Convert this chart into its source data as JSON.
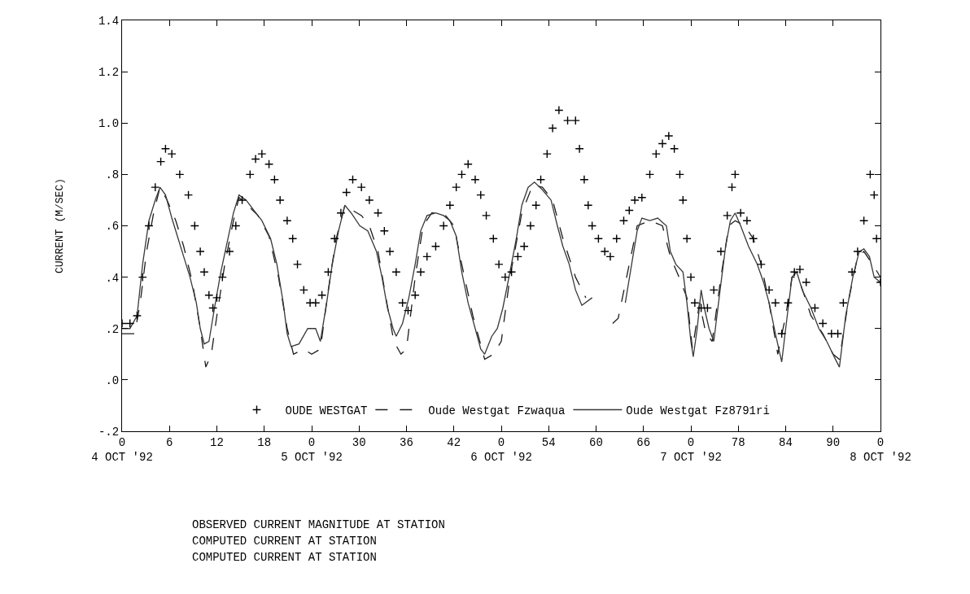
{
  "chart_data": {
    "type": "line",
    "ylabel": "CURRENT (M/SEC)",
    "xlim": [
      0,
      96
    ],
    "xticks": [
      {
        "value": 0,
        "label": "0\n4 OCT '92"
      },
      6,
      12,
      18,
      {
        "value": 24,
        "label": "0\n5 OCT '92"
      },
      30,
      36,
      42,
      {
        "value": 48,
        "label": "0\n6 OCT '92"
      },
      54,
      60,
      66,
      {
        "value": 72,
        "label": "0\n7 OCT '92"
      },
      78,
      84,
      90,
      {
        "value": 96,
        "label": "0\n8 OCT '92"
      }
    ],
    "ylim": [
      -0.2,
      1.4
    ],
    "yticks": [
      {
        "value": -0.2,
        "label": "-.2"
      },
      {
        "value": 0,
        "label": ".0"
      },
      {
        "value": 0.2,
        "label": ".2"
      },
      {
        "value": 0.4,
        "label": ".4"
      },
      {
        "value": 0.6,
        "label": ".6"
      },
      {
        "value": 0.8,
        "label": ".8"
      },
      {
        "value": 1.0,
        "label": "1.0"
      },
      1.2,
      1.4
    ],
    "legend": "bottom",
    "series": [
      {
        "name": "OUDE WESTGAT",
        "type": "scatter",
        "marker": "cross",
        "color": "#000000",
        "x": [
          0,
          1.0,
          1.9,
          2.6,
          3.4,
          4.2,
          4.9,
          5.5,
          6.3,
          7.3,
          8.4,
          9.2,
          9.9,
          10.4,
          11.0,
          11.5,
          12.0,
          12.7,
          13.6,
          14.4,
          15.2,
          16.2,
          16.9,
          17.7,
          18.6,
          19.3,
          20.0,
          20.9,
          21.6,
          22.2,
          23.0,
          23.8,
          24.5,
          25.3,
          26.1,
          26.9,
          27.7,
          28.4,
          29.2,
          30.3,
          31.3,
          32.4,
          33.2,
          33.9,
          34.7,
          35.5,
          36.2,
          37.1,
          37.8,
          38.6,
          39.7,
          40.7,
          41.5,
          42.3,
          43.0,
          43.8,
          44.7,
          45.4,
          46.1,
          47.0,
          47.7,
          48.5,
          49.3,
          50.1,
          50.9,
          51.7,
          52.4,
          53.0,
          53.8,
          54.5,
          55.3,
          56.4,
          57.4,
          57.9,
          58.5,
          59.0,
          59.5,
          60.3,
          61.1,
          61.8,
          62.6,
          63.5,
          64.2,
          64.9,
          65.8,
          66.8,
          67.6,
          68.4,
          69.2,
          69.9,
          70.6,
          71.0,
          71.5,
          72.0,
          72.5,
          73.3,
          74.1,
          74.9,
          75.8,
          76.6,
          77.2,
          77.6,
          78.3,
          79.1,
          79.9,
          80.9,
          81.9,
          82.7,
          83.5,
          84.3,
          85.1,
          85.8,
          86.6,
          87.7,
          88.7,
          89.8,
          90.6,
          91.3,
          92.4,
          93.1,
          93.9,
          94.7,
          95.2,
          95.5,
          96.0
        ],
        "values": [
          0.22,
          0.22,
          0.25,
          0.4,
          0.6,
          0.75,
          0.85,
          0.9,
          0.88,
          0.8,
          0.72,
          0.6,
          0.5,
          0.42,
          0.33,
          0.28,
          0.32,
          0.4,
          0.5,
          0.6,
          0.7,
          0.8,
          0.86,
          0.88,
          0.84,
          0.78,
          0.7,
          0.62,
          0.55,
          0.45,
          0.35,
          0.3,
          0.3,
          0.33,
          0.42,
          0.55,
          0.65,
          0.73,
          0.78,
          0.75,
          0.7,
          0.65,
          0.58,
          0.5,
          0.42,
          0.3,
          0.27,
          0.33,
          0.42,
          0.48,
          0.52,
          0.6,
          0.68,
          0.75,
          0.8,
          0.84,
          0.78,
          0.72,
          0.64,
          0.55,
          0.45,
          0.4,
          0.42,
          0.48,
          0.52,
          0.6,
          0.68,
          0.78,
          0.88,
          0.98,
          1.05,
          1.01,
          1.01,
          0.9,
          0.78,
          0.68,
          0.6,
          0.55,
          0.5,
          0.48,
          0.55,
          0.62,
          0.66,
          0.7,
          0.71,
          0.8,
          0.88,
          0.92,
          0.95,
          0.9,
          0.8,
          0.7,
          0.55,
          0.4,
          0.3,
          0.28,
          0.28,
          0.35,
          0.5,
          0.64,
          0.75,
          0.8,
          0.65,
          0.62,
          0.55,
          0.45,
          0.35,
          0.3,
          0.18,
          0.3,
          0.42,
          0.43,
          0.38,
          0.28,
          0.22,
          0.18,
          0.18,
          0.3,
          0.42,
          0.5,
          0.62,
          0.8,
          0.72,
          0.55,
          0.38
        ]
      },
      {
        "name": "Oude Westgat Fzwaqua",
        "type": "line",
        "line_style": "dashed",
        "color": "#1c1c1c",
        "x": [
          0,
          1.6,
          2.3,
          3.1,
          4.0,
          4.8,
          5.7,
          6.8,
          7.8,
          8.9,
          9.9,
          10.6,
          11.3,
          12.0,
          13.0,
          14.1,
          14.8,
          15.9,
          17.2,
          18.6,
          19.8,
          20.9,
          21.7,
          23.0,
          24.0,
          25.1,
          26.1,
          27.1,
          28.2,
          29.2,
          30.3,
          31.3,
          32.4,
          33.4,
          34.4,
          35.3,
          36.0,
          37.1,
          38.1,
          39.2,
          40.7,
          42.0,
          43.0,
          44.4,
          45.9,
          47.0,
          48.0,
          49.1,
          50.6,
          52.0,
          53.2,
          54.5,
          55.8,
          57.4,
          58.7,
          60.5,
          62.1,
          62.8,
          64.2,
          65.2,
          66.8,
          68.4,
          69.4,
          70.5,
          71.5,
          72.2,
          73.1,
          73.9,
          74.7,
          75.8,
          76.8,
          77.6,
          78.8,
          79.9,
          80.9,
          81.9,
          83.0,
          84.0,
          84.8,
          85.6,
          87.2,
          88.7,
          90.0,
          90.8,
          91.9,
          93.1,
          93.9,
          95.0,
          96.0
        ],
        "values": [
          0.18,
          0.18,
          0.3,
          0.5,
          0.65,
          0.75,
          0.7,
          0.62,
          0.52,
          0.38,
          0.2,
          0.05,
          0.1,
          0.25,
          0.45,
          0.62,
          0.71,
          0.68,
          0.64,
          0.56,
          0.4,
          0.2,
          0.1,
          0.12,
          0.1,
          0.12,
          0.35,
          0.55,
          0.68,
          0.66,
          0.64,
          0.6,
          0.5,
          0.32,
          0.15,
          0.1,
          0.12,
          0.4,
          0.6,
          0.65,
          0.65,
          0.6,
          0.45,
          0.25,
          0.08,
          0.1,
          0.15,
          0.4,
          0.65,
          0.76,
          0.75,
          0.7,
          0.55,
          0.4,
          0.32,
          null,
          0.22,
          0.24,
          0.45,
          0.6,
          0.62,
          0.6,
          0.48,
          0.4,
          0.32,
          0.12,
          0.3,
          0.18,
          0.15,
          0.4,
          0.6,
          0.62,
          0.6,
          0.55,
          0.45,
          0.3,
          0.1,
          0.25,
          0.4,
          0.4,
          0.25,
          0.18,
          0.1,
          0.08,
          0.3,
          0.48,
          0.5,
          0.45,
          0.4
        ]
      },
      {
        "name": "Oude Westgat Fz8791ri",
        "type": "line",
        "line_style": "solid",
        "color": "#383838",
        "x": [
          0,
          1.0,
          1.9,
          2.6,
          3.4,
          4.2,
          4.8,
          5.5,
          6.3,
          7.1,
          7.8,
          8.6,
          9.4,
          9.9,
          10.4,
          11.0,
          11.7,
          12.5,
          13.4,
          14.1,
          14.8,
          15.7,
          16.7,
          17.7,
          18.8,
          19.6,
          20.4,
          20.9,
          21.4,
          22.4,
          23.5,
          24.5,
          25.1,
          25.9,
          26.6,
          27.4,
          28.2,
          29.0,
          30.1,
          31.1,
          32.2,
          32.9,
          33.6,
          34.3,
          34.7,
          35.5,
          36.3,
          37.1,
          37.8,
          38.6,
          39.7,
          40.7,
          41.5,
          42.3,
          43.0,
          43.8,
          44.7,
          45.4,
          45.9,
          46.8,
          47.5,
          48.2,
          49.1,
          49.9,
          50.6,
          51.4,
          52.2,
          53.2,
          54.3,
          55.1,
          55.8,
          56.6,
          57.4,
          58.2,
          59.5,
          61.6,
          63.7,
          64.5,
          65.2,
          65.8,
          66.8,
          67.8,
          68.9,
          69.4,
          70.1,
          71.0,
          71.5,
          72.0,
          72.3,
          72.8,
          73.3,
          73.7,
          74.3,
          74.9,
          75.7,
          76.4,
          77.0,
          77.6,
          78.3,
          79.3,
          80.4,
          81.2,
          81.9,
          82.7,
          83.5,
          84.0,
          84.8,
          85.4,
          86.1,
          87.2,
          88.2,
          89.2,
          90.3,
          90.8,
          91.6,
          92.5,
          93.3,
          93.9,
          94.6,
          95.2,
          96.0
        ],
        "values": [
          0.2,
          0.2,
          0.25,
          0.45,
          0.62,
          0.7,
          0.75,
          0.72,
          0.63,
          0.55,
          0.48,
          0.4,
          0.3,
          0.2,
          0.14,
          0.15,
          0.28,
          0.42,
          0.55,
          0.65,
          0.72,
          0.7,
          0.66,
          0.62,
          0.55,
          0.45,
          0.3,
          0.18,
          0.13,
          0.14,
          0.2,
          0.2,
          0.15,
          0.3,
          0.45,
          0.58,
          0.68,
          0.65,
          0.6,
          0.58,
          0.5,
          0.4,
          0.28,
          0.2,
          0.17,
          0.22,
          0.32,
          0.45,
          0.58,
          0.64,
          0.65,
          0.64,
          0.62,
          0.56,
          0.42,
          0.3,
          0.2,
          0.12,
          0.1,
          0.17,
          0.2,
          0.28,
          0.42,
          0.55,
          0.68,
          0.75,
          0.77,
          0.74,
          0.7,
          0.6,
          0.52,
          0.45,
          0.35,
          0.29,
          0.32,
          null,
          0.3,
          0.45,
          0.58,
          0.63,
          0.62,
          0.63,
          0.6,
          0.5,
          0.45,
          0.42,
          0.3,
          0.15,
          0.09,
          0.2,
          0.35,
          0.28,
          0.2,
          0.15,
          0.35,
          0.52,
          0.62,
          0.65,
          0.6,
          0.52,
          0.45,
          0.38,
          0.3,
          0.18,
          0.07,
          0.2,
          0.4,
          0.42,
          0.35,
          0.28,
          0.2,
          0.15,
          0.08,
          0.05,
          0.25,
          0.4,
          0.5,
          0.51,
          0.48,
          0.4,
          0.38
        ]
      }
    ],
    "annotations": [
      "OBSERVED CURRENT MAGNITUDE AT STATION",
      "COMPUTED CURRENT AT STATION",
      "COMPUTED CURRENT AT STATION"
    ]
  }
}
